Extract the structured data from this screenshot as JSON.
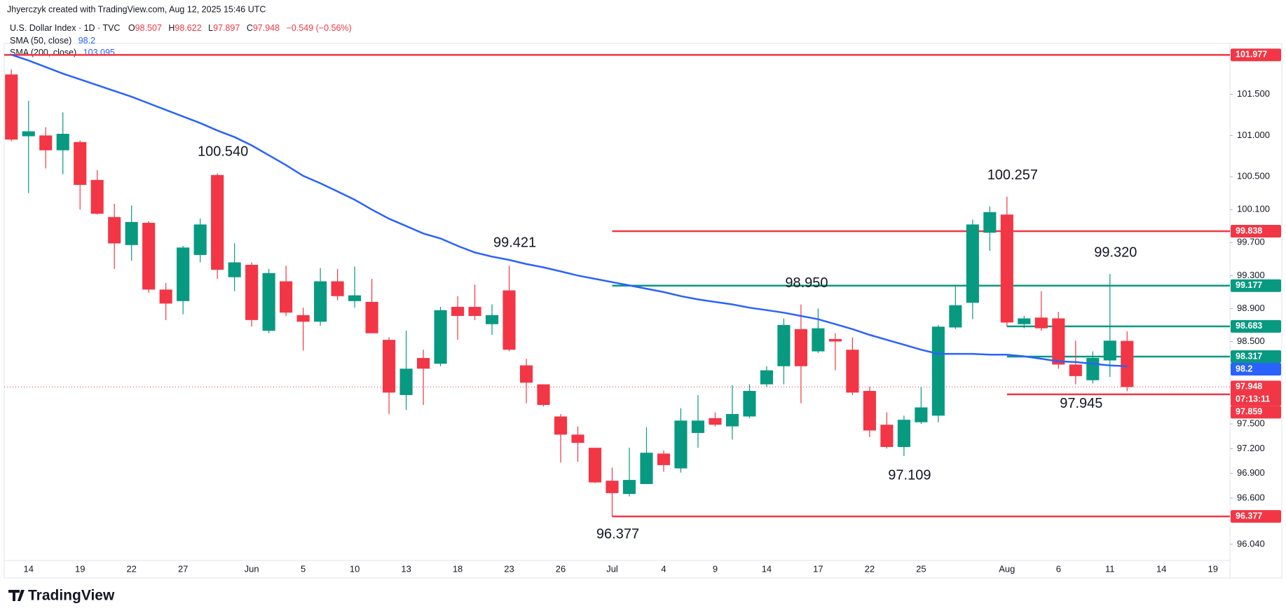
{
  "header": "Jhyerczyk created with TradingView.com, Aug 12, 2025 15:46 UTC",
  "footer": "TradingView",
  "chart_data": {
    "type": "candlestick",
    "title": "U.S. Dollar Index · 1D · TVC",
    "ohlc_legend": [
      {
        "key": "O",
        "value": 98.507
      },
      {
        "key": "H",
        "value": 98.622
      },
      {
        "key": "L",
        "value": 97.897
      },
      {
        "key": "C",
        "value": 97.948
      }
    ],
    "change": "−0.549 (−0.56%)",
    "up_color": "#089981",
    "down_color": "#f23645",
    "categories": [
      null,
      "14",
      null,
      null,
      "19",
      null,
      null,
      "22",
      null,
      null,
      "27",
      null,
      null,
      null,
      "Jun",
      null,
      null,
      "5",
      null,
      null,
      "10",
      null,
      null,
      "13",
      null,
      null,
      "18",
      null,
      null,
      "23",
      null,
      null,
      "26",
      null,
      null,
      "Jul",
      null,
      null,
      "4",
      null,
      null,
      "9",
      null,
      null,
      "14",
      null,
      null,
      "17",
      null,
      null,
      "22",
      null,
      null,
      "25",
      null,
      null,
      null,
      null,
      "Aug",
      null,
      null,
      "6",
      null,
      null,
      "11",
      null,
      null,
      "14",
      null,
      null,
      "19"
    ],
    "open": [
      101.74,
      100.99,
      101.0,
      100.82,
      100.92,
      100.46,
      100.01,
      99.67,
      99.94,
      99.13,
      98.99,
      99.55,
      100.52,
      99.28,
      99.43,
      98.63,
      99.23,
      98.82,
      98.74,
      99.23,
      98.99,
      98.98,
      98.52,
      97.85,
      98.3,
      98.23,
      98.92,
      98.92,
      98.71,
      99.12,
      98.21,
      97.98,
      97.59,
      97.37,
      97.21,
      96.81,
      96.65,
      96.77,
      97.14,
      96.96,
      97.39,
      97.57,
      97.47,
      97.59,
      97.98,
      98.2,
      98.65,
      98.38,
      98.53,
      98.4,
      97.9,
      97.49,
      97.22,
      97.52,
      97.6,
      98.67,
      98.97,
      99.82,
      100.04,
      98.71,
      98.79,
      98.78,
      98.22,
      98.03,
      98.27,
      98.507,
      null,
      null,
      null,
      null,
      null
    ],
    "high": [
      101.8,
      101.42,
      101.1,
      101.28,
      100.94,
      100.58,
      100.17,
      100.15,
      99.96,
      99.21,
      99.66,
      99.99,
      100.54,
      99.69,
      99.46,
      99.38,
      99.42,
      98.91,
      99.39,
      99.38,
      99.41,
      99.26,
      98.55,
      98.63,
      98.4,
      98.92,
      99.05,
      99.19,
      98.95,
      99.421,
      98.29,
      97.98,
      97.62,
      97.47,
      97.21,
      96.97,
      97.21,
      97.46,
      97.18,
      97.69,
      97.85,
      97.64,
      97.97,
      97.98,
      98.2,
      98.78,
      98.95,
      98.9,
      98.6,
      98.55,
      97.95,
      97.64,
      97.6,
      97.95,
      98.7,
      99.19,
      99.98,
      100.14,
      100.257,
      98.81,
      99.11,
      98.86,
      98.51,
      98.38,
      99.32,
      98.622,
      null,
      null,
      null,
      null,
      null
    ],
    "low": [
      100.93,
      100.3,
      100.6,
      100.53,
      100.1,
      100.04,
      99.38,
      99.48,
      99.09,
      98.76,
      98.83,
      99.46,
      99.26,
      99.11,
      98.68,
      98.6,
      98.81,
      98.39,
      98.69,
      99.0,
      98.91,
      98.6,
      97.62,
      97.67,
      97.73,
      98.2,
      98.52,
      98.76,
      98.58,
      98.38,
      97.75,
      97.71,
      97.03,
      97.04,
      96.78,
      96.377,
      96.62,
      96.77,
      96.92,
      96.91,
      97.21,
      97.47,
      97.31,
      97.57,
      97.95,
      97.98,
      97.75,
      98.36,
      98.15,
      97.85,
      97.34,
      97.2,
      97.109,
      97.5,
      97.52,
      98.65,
      98.77,
      99.6,
      98.68,
      98.66,
      98.63,
      98.17,
      97.98,
      97.99,
      98.07,
      97.897,
      null,
      null,
      null,
      null,
      null
    ],
    "close": [
      100.95,
      101.05,
      100.82,
      101.02,
      100.4,
      100.05,
      99.69,
      99.95,
      99.13,
      98.96,
      99.64,
      99.92,
      99.37,
      99.46,
      98.76,
      99.33,
      98.85,
      98.74,
      99.23,
      99.05,
      99.06,
      98.6,
      97.88,
      98.17,
      98.17,
      98.88,
      98.81,
      98.81,
      98.82,
      98.4,
      98.0,
      97.73,
      97.37,
      97.27,
      96.79,
      96.66,
      96.82,
      97.15,
      97.0,
      97.54,
      97.54,
      97.49,
      97.62,
      97.9,
      98.15,
      98.7,
      98.2,
      98.66,
      98.5,
      97.88,
      97.42,
      97.22,
      97.55,
      97.7,
      98.68,
      98.94,
      99.92,
      100.07,
      98.73,
      98.78,
      98.66,
      98.22,
      98.08,
      98.3,
      98.51,
      97.948,
      null,
      null,
      null,
      null,
      null
    ],
    "series": [
      {
        "name": "SMA (50, close)",
        "color": "#2962ff",
        "last_value": 98.2,
        "values": [
          101.98,
          101.91,
          101.83,
          101.75,
          101.68,
          101.61,
          101.54,
          101.47,
          101.39,
          101.31,
          101.23,
          101.15,
          101.06,
          100.98,
          100.88,
          100.76,
          100.64,
          100.51,
          100.42,
          100.32,
          100.22,
          100.1,
          99.99,
          99.9,
          99.81,
          99.75,
          99.66,
          99.58,
          99.53,
          99.49,
          99.44,
          99.4,
          99.35,
          99.3,
          99.26,
          99.22,
          99.18,
          99.14,
          99.1,
          99.05,
          99.01,
          98.98,
          98.95,
          98.91,
          98.88,
          98.85,
          98.81,
          98.77,
          98.71,
          98.65,
          98.58,
          98.52,
          98.46,
          98.4,
          98.35,
          98.35,
          98.35,
          98.34,
          98.34,
          98.32,
          98.29,
          98.26,
          98.25,
          98.23,
          98.21,
          98.2,
          null,
          null,
          null,
          null,
          null
        ]
      },
      {
        "name": "SMA (200, close)",
        "color": "#2962ff",
        "last_value": 103.095
      }
    ],
    "levels": [
      {
        "value": 101.977,
        "color": "#f23645"
      },
      {
        "value": 99.838,
        "color": "#f23645"
      },
      {
        "value": 99.177,
        "color": "#089981"
      },
      {
        "value": 98.683,
        "color": "#089981"
      },
      {
        "value": 98.317,
        "color": "#089981"
      },
      {
        "value": 97.859,
        "color": "#f23645"
      },
      {
        "value": 96.377,
        "color": "#f23645"
      }
    ],
    "last_price": 97.948,
    "countdown": "07:13:11",
    "annotations": [
      {
        "value": 100.54,
        "label": "100.540"
      },
      {
        "value": 99.421,
        "label": "99.421"
      },
      {
        "value": 96.377,
        "label": "96.377"
      },
      {
        "value": 98.95,
        "label": "98.950"
      },
      {
        "value": 97.109,
        "label": "97.109"
      },
      {
        "value": 100.257,
        "label": "100.257"
      },
      {
        "value": 99.32,
        "label": "99.320"
      },
      {
        "value": 97.945,
        "label": "97.945"
      }
    ],
    "ylim": [
      95.86,
      102.04
    ],
    "yticks": [
      {
        "value": 101.5,
        "label": "101.500"
      },
      {
        "value": 101.0,
        "label": "101.000"
      },
      {
        "value": 100.5,
        "label": "100.500"
      },
      {
        "value": 100.1,
        "label": "100.100"
      },
      {
        "value": 99.7,
        "label": "99.700"
      },
      {
        "value": 99.3,
        "label": "99.300"
      },
      {
        "value": 98.9,
        "label": "98.900"
      },
      {
        "value": 98.5,
        "label": "98.500"
      },
      {
        "value": 97.5,
        "label": "97.500"
      },
      {
        "value": 97.2,
        "label": "97.200"
      },
      {
        "value": 96.9,
        "label": "96.900"
      },
      {
        "value": 96.6,
        "label": "96.600"
      },
      {
        "value": 96.04,
        "label": "96.040"
      }
    ],
    "grid": false
  }
}
